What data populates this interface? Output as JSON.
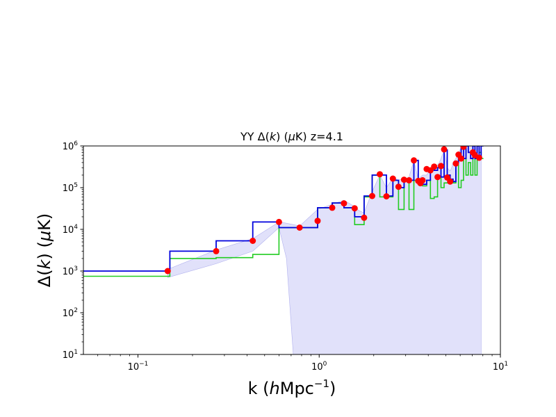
{
  "chart_data": {
    "type": "line",
    "title": {
      "prefix": "YY  Δ(",
      "k": "k",
      "mid": ") (",
      "mu": "μ",
      "suffix": "K)  z=4.1"
    },
    "xlabel": {
      "prefix": "k (",
      "h": "h",
      "unit": "Mpc",
      "exp": "−1",
      "suffix": ")"
    },
    "ylabel": {
      "prefix": "Δ(",
      "k": "k",
      "mid": ") (",
      "mu": "μ",
      "suffix": "K)"
    },
    "x_scale": "log",
    "y_scale": "log",
    "xlim": [
      0.05,
      10
    ],
    "ylim": [
      10,
      1000000
    ],
    "x_ticks": [
      {
        "value": 0.1,
        "base": "10",
        "exp": "−1"
      },
      {
        "value": 1,
        "base": "10",
        "exp": "0"
      },
      {
        "value": 10,
        "base": "10",
        "exp": "1"
      }
    ],
    "y_ticks": [
      {
        "value": 10,
        "base": "10",
        "exp": "1"
      },
      {
        "value": 100,
        "base": "10",
        "exp": "2"
      },
      {
        "value": 1000,
        "base": "10",
        "exp": "3"
      },
      {
        "value": 10000,
        "base": "10",
        "exp": "4"
      },
      {
        "value": 100000,
        "base": "10",
        "exp": "5"
      },
      {
        "value": 1000000,
        "base": "10",
        "exp": "6"
      }
    ],
    "grid": false,
    "series": [
      {
        "kind": "step",
        "color": "#0000dd",
        "x": [
          0.05,
          0.15,
          0.27,
          0.43,
          0.6,
          0.78,
          0.98,
          1.18,
          1.37,
          1.57,
          1.77,
          1.96,
          2.16,
          2.35,
          2.55,
          2.74,
          2.94,
          3.13,
          3.33,
          3.52,
          3.72,
          3.92,
          4.11,
          4.31,
          4.5,
          4.7,
          4.89,
          5.09,
          5.28,
          5.48,
          5.68,
          5.87,
          6.07,
          6.26,
          6.46,
          6.65,
          6.85,
          7.05,
          7.24,
          7.44,
          7.63,
          7.83
        ],
        "y": [
          1000,
          3000,
          5300,
          15000,
          11000,
          11000,
          33000,
          43000,
          33000,
          20000,
          63000,
          200000,
          200000,
          63000,
          150000,
          100000,
          150000,
          150000,
          450000,
          150000,
          120000,
          150000,
          280000,
          260000,
          300000,
          180000,
          800000,
          200000,
          160000,
          140000,
          400000,
          600000,
          1000000,
          500000,
          1000000,
          700000,
          500000,
          1000000,
          500000,
          1000000,
          500000,
          1000000
        ]
      },
      {
        "kind": "step",
        "color": "#22cc22",
        "x": [
          0.05,
          0.15,
          0.27,
          0.43,
          0.6,
          0.78,
          0.98,
          1.18,
          1.37,
          1.57,
          1.77,
          1.96,
          2.16,
          2.35,
          2.55,
          2.74,
          2.94,
          3.13,
          3.33,
          3.52,
          3.72,
          3.92,
          4.11,
          4.31,
          4.5,
          4.7,
          4.89,
          5.09,
          5.28,
          5.48,
          5.68,
          5.87,
          6.07,
          6.26,
          6.46,
          6.65,
          6.85,
          7.05,
          7.24,
          7.44,
          7.63,
          7.83
        ],
        "y": [
          750,
          2000,
          2100,
          2500,
          11000,
          11000,
          33000,
          43000,
          33000,
          13000,
          60000,
          200000,
          60000,
          60000,
          150000,
          30000,
          150000,
          30000,
          150000,
          150000,
          110000,
          150000,
          55000,
          60000,
          180000,
          100000,
          130000,
          130000,
          140000,
          130000,
          350000,
          100000,
          150000,
          500000,
          200000,
          400000,
          200000,
          600000,
          200000,
          500000,
          700000,
          500000
        ]
      }
    ],
    "points": {
      "color": "#ff0000",
      "x": [
        0.146,
        0.27,
        0.43,
        0.6,
        0.78,
        0.98,
        1.18,
        1.37,
        1.57,
        1.77,
        1.96,
        2.16,
        2.35,
        2.55,
        2.74,
        2.94,
        3.13,
        3.33,
        3.52,
        3.62,
        3.72,
        3.92,
        4.11,
        4.31,
        4.5,
        4.7,
        4.89,
        5.09,
        5.28,
        5.68,
        5.87,
        6.07,
        6.26,
        7.05,
        7.24,
        7.63
      ],
      "y": [
        1000,
        3000,
        5300,
        15000,
        11000,
        16000,
        33000,
        42000,
        32000,
        19000,
        63000,
        210000,
        62000,
        165000,
        105000,
        155000,
        150000,
        450000,
        145000,
        128000,
        150000,
        280000,
        260000,
        320000,
        180000,
        330000,
        830000,
        175000,
        140000,
        380000,
        620000,
        500000,
        950000,
        700000,
        600000,
        520000
      ]
    },
    "band": {
      "color": "#c8c8f5",
      "x": [
        0.146,
        0.27,
        0.43,
        0.6,
        0.66,
        0.72,
        0.78,
        0.98,
        1.18,
        1.37,
        1.57,
        1.66,
        1.77,
        1.96,
        2.16,
        2.35,
        2.55,
        2.66,
        2.74,
        2.94,
        3.05,
        3.13,
        3.33,
        3.52,
        3.72,
        3.82,
        3.92,
        4.11,
        4.21,
        4.31,
        4.5,
        4.6,
        4.7,
        4.89,
        5.0,
        5.09,
        5.28,
        5.38,
        5.48,
        5.68,
        5.78,
        5.87,
        6.07,
        6.17,
        6.26,
        6.46,
        6.56,
        6.65,
        6.85,
        6.95,
        7.05,
        7.24,
        7.34,
        7.44,
        7.63,
        7.83
      ],
      "upper": [
        1100,
        3200,
        6000,
        15000,
        14000,
        13000,
        12000,
        30000,
        40000,
        50000,
        35000,
        28000,
        25000,
        80000,
        200000,
        100000,
        170000,
        160000,
        150000,
        170000,
        160000,
        180000,
        450000,
        160000,
        200000,
        200000,
        200000,
        300000,
        300000,
        320000,
        350000,
        400000,
        500000,
        800000,
        500000,
        300000,
        250000,
        300000,
        400000,
        500000,
        600000,
        700000,
        900000,
        900000,
        1000000,
        1000000,
        1000000,
        1000000,
        1000000,
        1000000,
        1000000,
        1000000,
        1000000,
        1000000,
        1000000,
        1000000
      ],
      "lower": [
        700,
        1500,
        3000,
        11000,
        2000,
        10,
        10,
        10,
        10,
        10,
        10,
        10,
        10,
        10,
        10,
        10,
        10,
        10,
        10,
        10,
        10,
        10,
        10,
        10,
        10,
        10,
        10,
        10,
        10,
        10,
        10,
        10,
        10,
        10,
        10,
        10,
        10,
        10,
        10,
        10,
        10,
        10,
        10,
        10,
        10,
        10,
        10,
        10,
        10,
        10,
        10,
        10,
        10,
        10,
        10,
        10
      ]
    }
  }
}
